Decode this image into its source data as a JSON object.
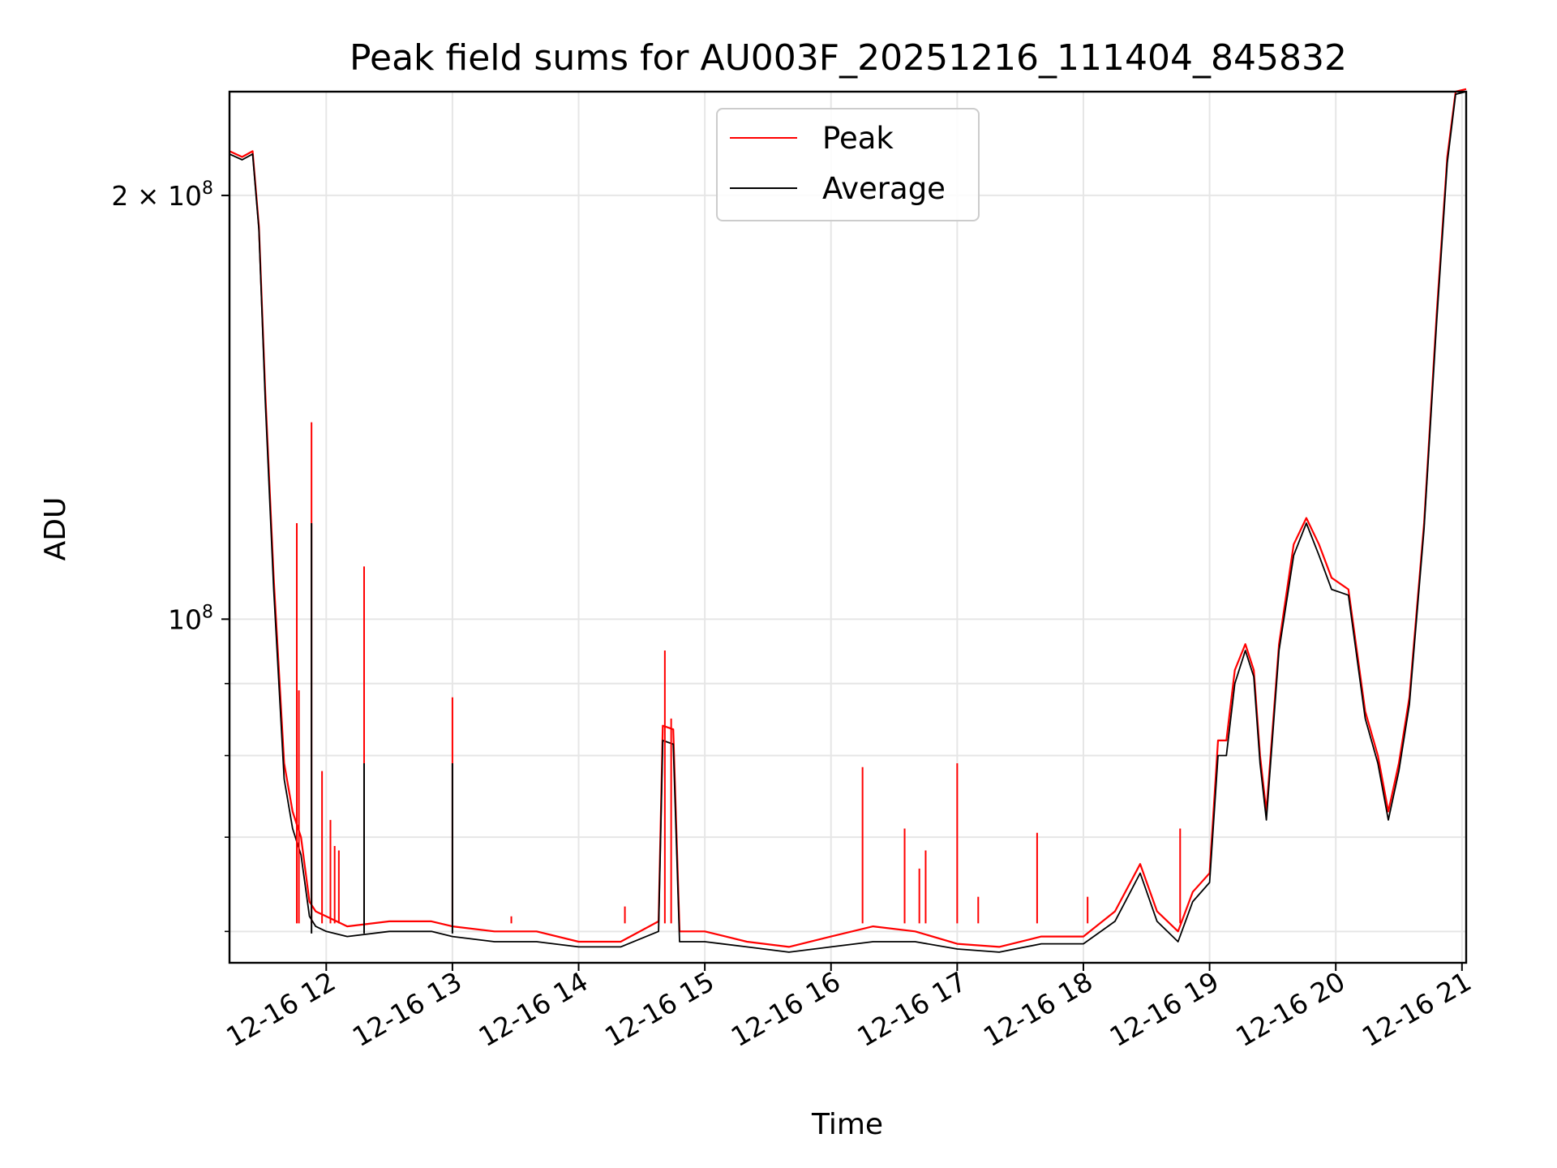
{
  "chart_data": {
    "type": "line",
    "title": "Peak field sums for AU003F_20251216_111404_845832",
    "xlabel": "Time",
    "ylabel": "ADU",
    "yscale": "log",
    "grid": true,
    "legend_placement": "upper center",
    "xlim": [
      "2025-12-16T11:14",
      "2025-12-16T21:02"
    ],
    "ylim": [
      57000000,
      237000000
    ],
    "x_ticks": [
      {
        "value": "2025-12-16T12:00",
        "label": "12-16 12"
      },
      {
        "value": "2025-12-16T13:00",
        "label": "12-16 13"
      },
      {
        "value": "2025-12-16T14:00",
        "label": "12-16 14"
      },
      {
        "value": "2025-12-16T15:00",
        "label": "12-16 15"
      },
      {
        "value": "2025-12-16T16:00",
        "label": "12-16 16"
      },
      {
        "value": "2025-12-16T17:00",
        "label": "12-16 17"
      },
      {
        "value": "2025-12-16T18:00",
        "label": "12-16 18"
      },
      {
        "value": "2025-12-16T19:00",
        "label": "12-16 19"
      },
      {
        "value": "2025-12-16T20:00",
        "label": "12-16 20"
      },
      {
        "value": "2025-12-16T21:00",
        "label": "12-16 21"
      }
    ],
    "y_major_ticks": [
      {
        "value": 100000000,
        "base": "10",
        "exp": "8",
        "prefix": ""
      },
      {
        "value": 200000000,
        "base": "10",
        "exp": "8",
        "prefix": "2 × "
      }
    ],
    "y_minor_ticks": [
      60000000,
      70000000,
      80000000,
      90000000
    ],
    "series": [
      {
        "name": "Peak",
        "color": "#ff0000",
        "x": [
          "2025-12-16T11:14",
          "2025-12-16T11:20",
          "2025-12-16T11:25",
          "2025-12-16T11:28",
          "2025-12-16T11:31",
          "2025-12-16T11:35",
          "2025-12-16T11:40",
          "2025-12-16T11:44",
          "2025-12-16T11:48",
          "2025-12-16T11:52",
          "2025-12-16T11:55",
          "2025-12-16T12:00",
          "2025-12-16T12:10",
          "2025-12-16T12:30",
          "2025-12-16T12:50",
          "2025-12-16T13:00",
          "2025-12-16T13:20",
          "2025-12-16T13:40",
          "2025-12-16T14:00",
          "2025-12-16T14:20",
          "2025-12-16T14:38",
          "2025-12-16T14:40",
          "2025-12-16T14:45",
          "2025-12-16T14:48",
          "2025-12-16T15:00",
          "2025-12-16T15:20",
          "2025-12-16T15:40",
          "2025-12-16T16:00",
          "2025-12-16T16:20",
          "2025-12-16T16:40",
          "2025-12-16T17:00",
          "2025-12-16T17:20",
          "2025-12-16T17:40",
          "2025-12-16T18:00",
          "2025-12-16T18:15",
          "2025-12-16T18:27",
          "2025-12-16T18:35",
          "2025-12-16T18:45",
          "2025-12-16T18:52",
          "2025-12-16T19:00",
          "2025-12-16T19:04",
          "2025-12-16T19:08",
          "2025-12-16T19:12",
          "2025-12-16T19:17",
          "2025-12-16T19:21",
          "2025-12-16T19:24",
          "2025-12-16T19:27",
          "2025-12-16T19:33",
          "2025-12-16T19:40",
          "2025-12-16T19:46",
          "2025-12-16T19:52",
          "2025-12-16T19:58",
          "2025-12-16T20:06",
          "2025-12-16T20:14",
          "2025-12-16T20:20",
          "2025-12-16T20:25",
          "2025-12-16T20:30",
          "2025-12-16T20:35",
          "2025-12-16T20:42",
          "2025-12-16T20:48",
          "2025-12-16T20:53",
          "2025-12-16T20:57",
          "2025-12-16T21:02"
        ],
        "y": [
          215000000,
          213000000,
          215000000,
          190000000,
          145000000,
          107000000,
          79000000,
          73000000,
          70000000,
          63000000,
          62000000,
          61500000,
          60500000,
          61000000,
          61000000,
          60500000,
          60000000,
          60000000,
          59000000,
          59000000,
          61000000,
          84000000,
          83500000,
          60000000,
          60000000,
          59000000,
          58500000,
          59500000,
          60500000,
          60000000,
          58800000,
          58500000,
          59500000,
          59500000,
          62000000,
          67000000,
          62000000,
          60000000,
          64000000,
          66000000,
          82000000,
          82000000,
          92000000,
          96000000,
          92000000,
          80000000,
          73000000,
          96000000,
          113000000,
          118000000,
          113000000,
          107000000,
          105000000,
          86000000,
          80000000,
          73000000,
          79000000,
          88000000,
          117000000,
          165000000,
          213000000,
          237000000,
          238000000
        ]
      },
      {
        "name": "Average",
        "color": "#000000",
        "x": [
          "2025-12-16T11:14",
          "2025-12-16T11:20",
          "2025-12-16T11:25",
          "2025-12-16T11:28",
          "2025-12-16T11:31",
          "2025-12-16T11:35",
          "2025-12-16T11:40",
          "2025-12-16T11:44",
          "2025-12-16T11:48",
          "2025-12-16T11:52",
          "2025-12-16T11:55",
          "2025-12-16T12:00",
          "2025-12-16T12:10",
          "2025-12-16T12:30",
          "2025-12-16T12:50",
          "2025-12-16T13:00",
          "2025-12-16T13:20",
          "2025-12-16T13:40",
          "2025-12-16T14:00",
          "2025-12-16T14:20",
          "2025-12-16T14:38",
          "2025-12-16T14:40",
          "2025-12-16T14:45",
          "2025-12-16T14:48",
          "2025-12-16T15:00",
          "2025-12-16T15:20",
          "2025-12-16T15:40",
          "2025-12-16T16:00",
          "2025-12-16T16:20",
          "2025-12-16T16:40",
          "2025-12-16T17:00",
          "2025-12-16T17:20",
          "2025-12-16T17:40",
          "2025-12-16T18:00",
          "2025-12-16T18:15",
          "2025-12-16T18:27",
          "2025-12-16T18:35",
          "2025-12-16T18:45",
          "2025-12-16T18:52",
          "2025-12-16T19:00",
          "2025-12-16T19:04",
          "2025-12-16T19:08",
          "2025-12-16T19:12",
          "2025-12-16T19:17",
          "2025-12-16T19:21",
          "2025-12-16T19:24",
          "2025-12-16T19:27",
          "2025-12-16T19:33",
          "2025-12-16T19:40",
          "2025-12-16T19:46",
          "2025-12-16T19:52",
          "2025-12-16T19:58",
          "2025-12-16T20:06",
          "2025-12-16T20:14",
          "2025-12-16T20:20",
          "2025-12-16T20:25",
          "2025-12-16T20:30",
          "2025-12-16T20:35",
          "2025-12-16T20:42",
          "2025-12-16T20:48",
          "2025-12-16T20:53",
          "2025-12-16T20:57",
          "2025-12-16T21:02"
        ],
        "y": [
          214000000,
          212000000,
          214000000,
          189000000,
          143000000,
          105000000,
          77000000,
          71000000,
          68000000,
          61500000,
          60500000,
          60000000,
          59500000,
          60000000,
          60000000,
          59500000,
          59000000,
          59000000,
          58500000,
          58500000,
          60000000,
          82000000,
          81500000,
          59000000,
          59000000,
          58500000,
          58000000,
          58500000,
          59000000,
          59000000,
          58300000,
          58000000,
          58800000,
          58800000,
          61000000,
          66000000,
          61000000,
          59000000,
          63000000,
          65000000,
          80000000,
          80000000,
          90000000,
          95000000,
          91000000,
          79000000,
          72000000,
          95000000,
          111000000,
          117000000,
          111000000,
          105000000,
          104000000,
          85000000,
          79000000,
          72000000,
          78000000,
          87000000,
          116000000,
          163000000,
          211000000,
          236000000,
          237000000
        ]
      }
    ],
    "spikes": [
      {
        "series": "Peak",
        "x": "2025-12-16T11:46",
        "y": 117000000
      },
      {
        "series": "Peak",
        "x": "2025-12-16T11:47",
        "y": 89000000
      },
      {
        "series": "Peak",
        "x": "2025-12-16T11:53",
        "y": 138000000
      },
      {
        "series": "Average",
        "x": "2025-12-16T11:53",
        "y": 117000000
      },
      {
        "series": "Peak",
        "x": "2025-12-16T11:58",
        "y": 78000000
      },
      {
        "series": "Peak",
        "x": "2025-12-16T12:02",
        "y": 72000000
      },
      {
        "series": "Peak",
        "x": "2025-12-16T12:04",
        "y": 69000000
      },
      {
        "series": "Peak",
        "x": "2025-12-16T12:06",
        "y": 68500000
      },
      {
        "series": "Peak",
        "x": "2025-12-16T12:18",
        "y": 109000000
      },
      {
        "series": "Average",
        "x": "2025-12-16T12:18",
        "y": 79000000
      },
      {
        "series": "Peak",
        "x": "2025-12-16T13:00",
        "y": 88000000
      },
      {
        "series": "Average",
        "x": "2025-12-16T13:00",
        "y": 79000000
      },
      {
        "series": "Peak",
        "x": "2025-12-16T13:28",
        "y": 61500000
      },
      {
        "series": "Peak",
        "x": "2025-12-16T14:22",
        "y": 62500000
      },
      {
        "series": "Peak",
        "x": "2025-12-16T14:41",
        "y": 95000000
      },
      {
        "series": "Peak",
        "x": "2025-12-16T14:44",
        "y": 85000000
      },
      {
        "series": "Peak",
        "x": "2025-12-16T16:15",
        "y": 78500000
      },
      {
        "series": "Peak",
        "x": "2025-12-16T16:35",
        "y": 71000000
      },
      {
        "series": "Peak",
        "x": "2025-12-16T16:42",
        "y": 66500000
      },
      {
        "series": "Peak",
        "x": "2025-12-16T16:45",
        "y": 68500000
      },
      {
        "series": "Peak",
        "x": "2025-12-16T17:00",
        "y": 79000000
      },
      {
        "series": "Peak",
        "x": "2025-12-16T17:10",
        "y": 63500000
      },
      {
        "series": "Peak",
        "x": "2025-12-16T17:38",
        "y": 70500000
      },
      {
        "series": "Peak",
        "x": "2025-12-16T18:02",
        "y": 63500000
      },
      {
        "series": "Peak",
        "x": "2025-12-16T18:46",
        "y": 71000000
      }
    ]
  }
}
